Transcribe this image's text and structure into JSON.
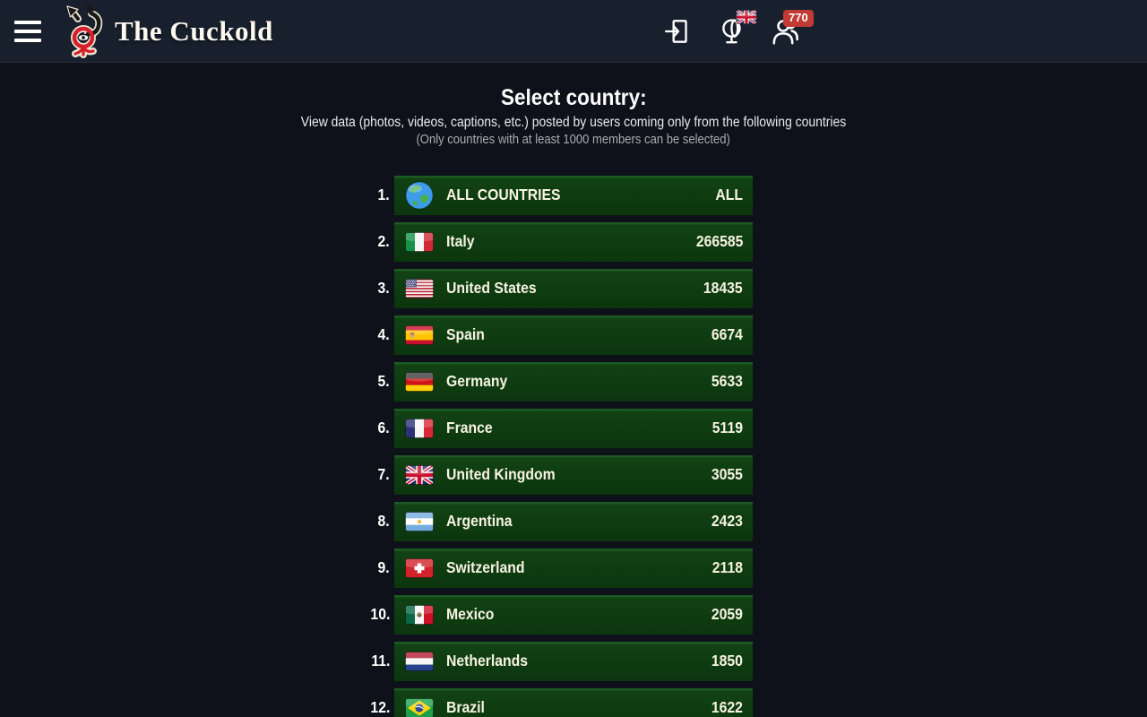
{
  "header": {
    "title": "The Cuckold",
    "members_badge": "770",
    "icons": [
      "hamburger-menu-icon",
      "site-logo-icon",
      "login-icon",
      "globe-language-icon",
      "uk-flag-icon",
      "users-icon"
    ]
  },
  "main": {
    "title": "Select country:",
    "subtitle": "View data (photos, videos, captions, etc.) posted by users coming only from the following countries",
    "note": "(Only countries with at least 1000 members can be selected)"
  },
  "countries": [
    {
      "rank": "1.",
      "flag": "globe",
      "name": "ALL COUNTRIES",
      "count": "ALL"
    },
    {
      "rank": "2.",
      "flag": "italy",
      "name": "Italy",
      "count": "266585"
    },
    {
      "rank": "3.",
      "flag": "us",
      "name": "United States",
      "count": "18435"
    },
    {
      "rank": "4.",
      "flag": "spain",
      "name": "Spain",
      "count": "6674"
    },
    {
      "rank": "5.",
      "flag": "germany",
      "name": "Germany",
      "count": "5633"
    },
    {
      "rank": "6.",
      "flag": "france",
      "name": "France",
      "count": "5119"
    },
    {
      "rank": "7.",
      "flag": "uk",
      "name": "United Kingdom",
      "count": "3055"
    },
    {
      "rank": "8.",
      "flag": "argentina",
      "name": "Argentina",
      "count": "2423"
    },
    {
      "rank": "9.",
      "flag": "switzerland",
      "name": "Switzerland",
      "count": "2118"
    },
    {
      "rank": "10.",
      "flag": "mexico",
      "name": "Mexico",
      "count": "2059"
    },
    {
      "rank": "11.",
      "flag": "netherlands",
      "name": "Netherlands",
      "count": "1850"
    },
    {
      "rank": "12.",
      "flag": "brazil",
      "name": "Brazil",
      "count": "1622"
    }
  ],
  "colors": {
    "header_bg": "#18202d",
    "page_bg": "#0e1119",
    "row_green": "#0d390f",
    "row_green_highlight": "#1d5a23",
    "badge_red": "#c13a33",
    "row_text": "#f7f3e2"
  }
}
